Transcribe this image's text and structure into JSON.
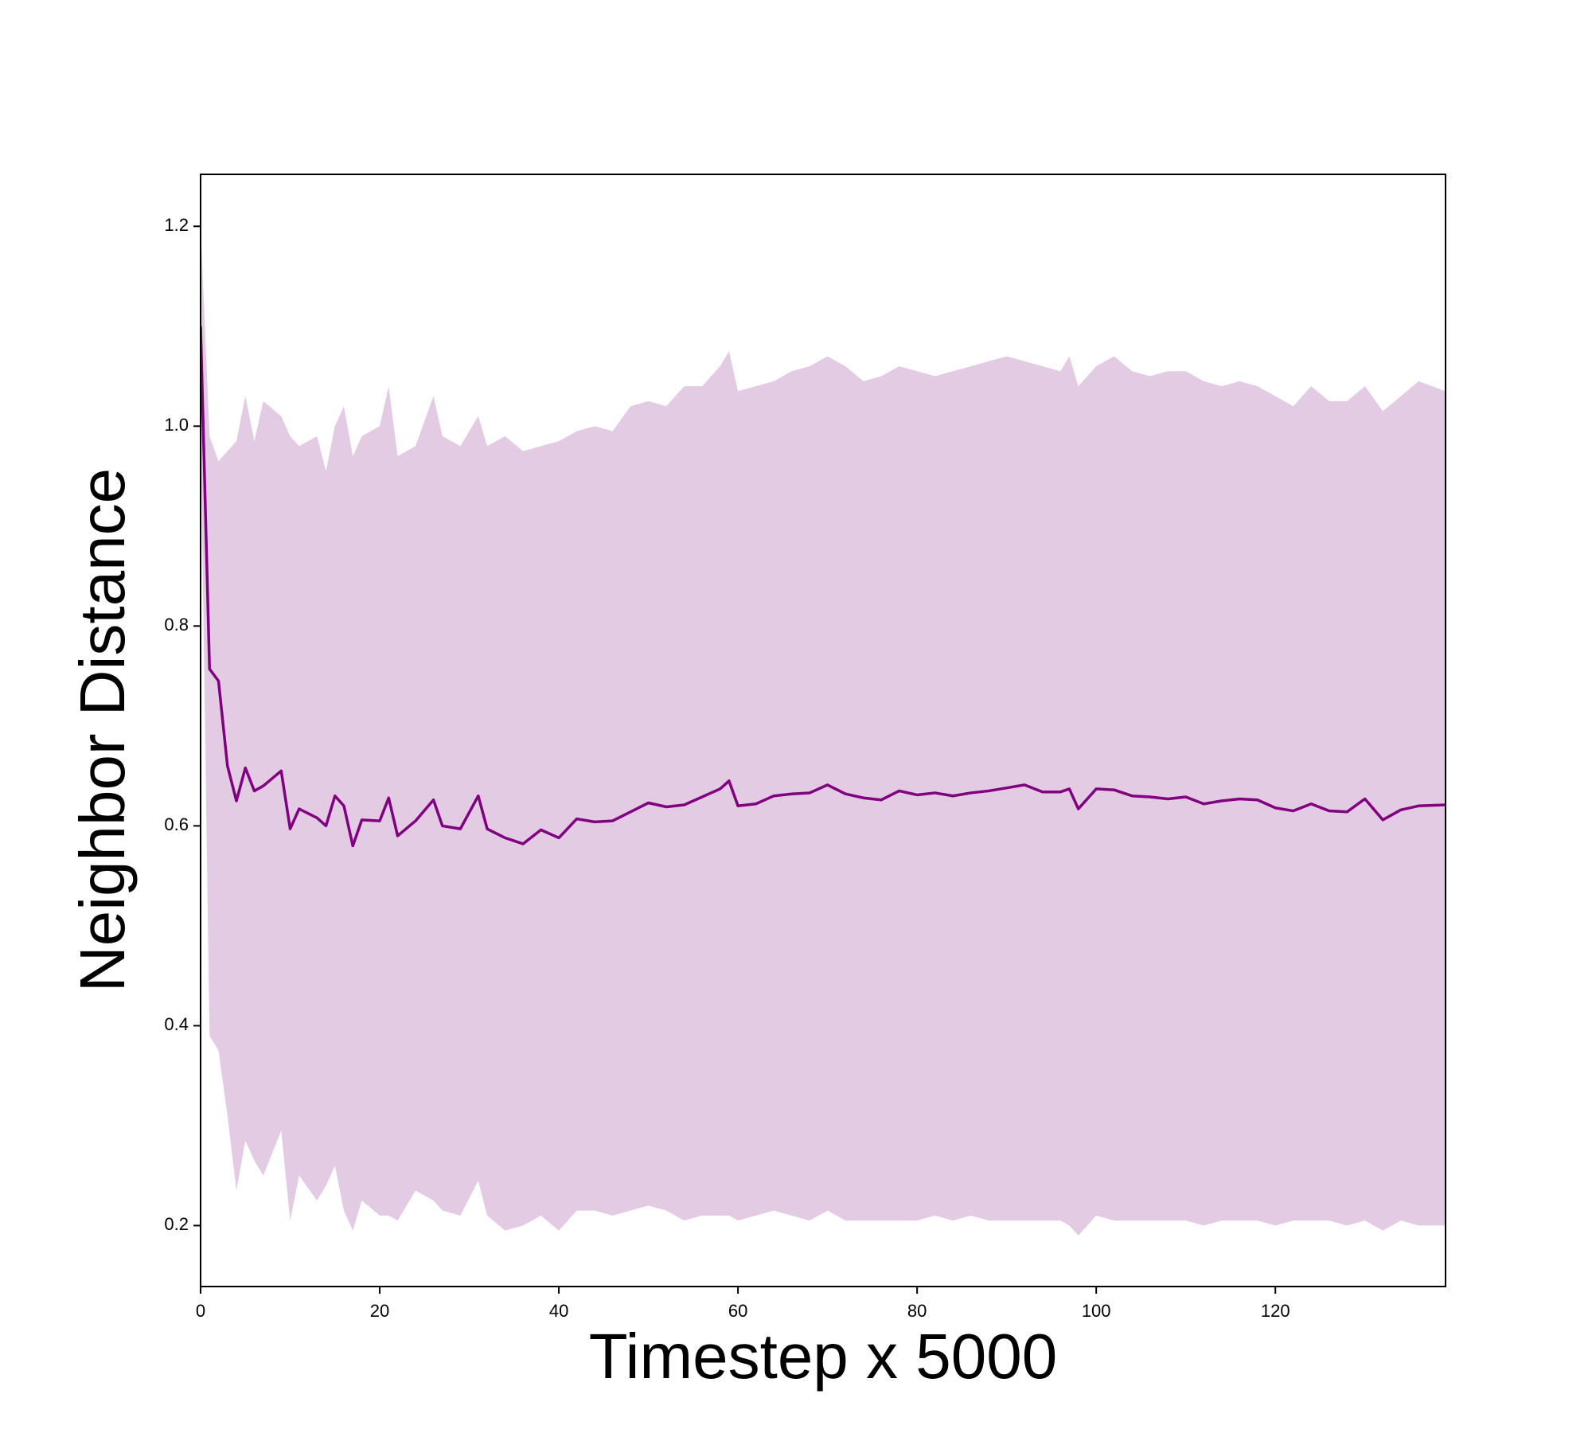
{
  "chart_data": {
    "type": "line",
    "x_label": "Timestep x 5000",
    "y_label": "Neighbor Distance",
    "color": "#800080",
    "band_color": "#e4cbe4",
    "xlim": [
      0,
      139
    ],
    "ylim": [
      0.139,
      1.252
    ],
    "xticks": [
      0,
      20,
      40,
      60,
      80,
      100,
      120
    ],
    "yticks": [
      0.2,
      0.4,
      0.6,
      0.8,
      {
        "value": 1,
        "label": "1.0"
      },
      1.2
    ],
    "x": [
      0,
      1,
      2,
      3,
      4,
      5,
      6,
      7,
      9,
      10,
      11,
      13,
      14,
      15,
      16,
      17,
      18,
      20,
      21,
      22,
      24,
      26,
      27,
      29,
      31,
      32,
      34,
      36,
      38,
      40,
      42,
      44,
      46,
      48,
      50,
      52,
      54,
      56,
      58,
      59,
      60,
      62,
      64,
      66,
      68,
      70,
      72,
      74,
      76,
      78,
      80,
      82,
      84,
      86,
      88,
      90,
      92,
      94,
      96,
      97,
      98,
      100,
      102,
      104,
      106,
      108,
      110,
      112,
      114,
      116,
      118,
      120,
      122,
      124,
      126,
      128,
      130,
      132,
      134,
      136,
      139
    ],
    "values": [
      1.1,
      0.757,
      0.745,
      0.66,
      0.625,
      0.658,
      0.635,
      0.64,
      0.655,
      0.597,
      0.617,
      0.608,
      0.6,
      0.63,
      0.62,
      0.58,
      0.606,
      0.605,
      0.628,
      0.59,
      0.605,
      0.626,
      0.6,
      0.597,
      0.63,
      0.597,
      0.588,
      0.582,
      0.596,
      0.588,
      0.607,
      0.604,
      0.605,
      0.614,
      0.623,
      0.619,
      0.621,
      0.629,
      0.637,
      0.645,
      0.62,
      0.622,
      0.63,
      0.632,
      0.633,
      0.641,
      0.632,
      0.628,
      0.626,
      0.635,
      0.631,
      0.633,
      0.63,
      0.633,
      0.635,
      0.638,
      0.641,
      0.634,
      0.634,
      0.637,
      0.617,
      0.637,
      0.636,
      0.63,
      0.629,
      0.627,
      0.629,
      0.622,
      0.625,
      0.627,
      0.626,
      0.618,
      0.615,
      0.622,
      0.615,
      0.614,
      0.627,
      0.606,
      0.616,
      0.62,
      0.621
    ],
    "band_upper": [
      1.2,
      0.99,
      0.965,
      0.975,
      0.985,
      1.03,
      0.985,
      1.025,
      1.01,
      0.99,
      0.98,
      0.99,
      0.955,
      1.0,
      1.02,
      0.97,
      0.99,
      1.0,
      1.04,
      0.97,
      0.98,
      1.03,
      0.99,
      0.98,
      1.01,
      0.98,
      0.99,
      0.975,
      0.98,
      0.985,
      0.995,
      1.0,
      0.995,
      1.02,
      1.025,
      1.02,
      1.04,
      1.04,
      1.06,
      1.075,
      1.035,
      1.04,
      1.045,
      1.055,
      1.06,
      1.07,
      1.06,
      1.045,
      1.05,
      1.06,
      1.055,
      1.05,
      1.055,
      1.06,
      1.065,
      1.07,
      1.065,
      1.06,
      1.055,
      1.07,
      1.04,
      1.06,
      1.07,
      1.055,
      1.05,
      1.055,
      1.055,
      1.045,
      1.04,
      1.045,
      1.04,
      1.03,
      1.02,
      1.04,
      1.025,
      1.025,
      1.04,
      1.015,
      1.03,
      1.045,
      1.035
    ],
    "band_lower": [
      1.0,
      0.39,
      0.375,
      0.31,
      0.235,
      0.285,
      0.265,
      0.25,
      0.295,
      0.205,
      0.25,
      0.225,
      0.24,
      0.26,
      0.215,
      0.195,
      0.225,
      0.21,
      0.21,
      0.205,
      0.235,
      0.225,
      0.215,
      0.21,
      0.245,
      0.21,
      0.195,
      0.2,
      0.21,
      0.195,
      0.215,
      0.215,
      0.21,
      0.215,
      0.22,
      0.215,
      0.205,
      0.21,
      0.21,
      0.21,
      0.205,
      0.21,
      0.215,
      0.21,
      0.205,
      0.215,
      0.205,
      0.205,
      0.205,
      0.205,
      0.205,
      0.21,
      0.205,
      0.21,
      0.205,
      0.205,
      0.205,
      0.205,
      0.205,
      0.2,
      0.19,
      0.21,
      0.205,
      0.205,
      0.205,
      0.205,
      0.205,
      0.2,
      0.205,
      0.205,
      0.205,
      0.2,
      0.205,
      0.205,
      0.205,
      0.2,
      0.205,
      0.195,
      0.205,
      0.2,
      0.2
    ]
  }
}
